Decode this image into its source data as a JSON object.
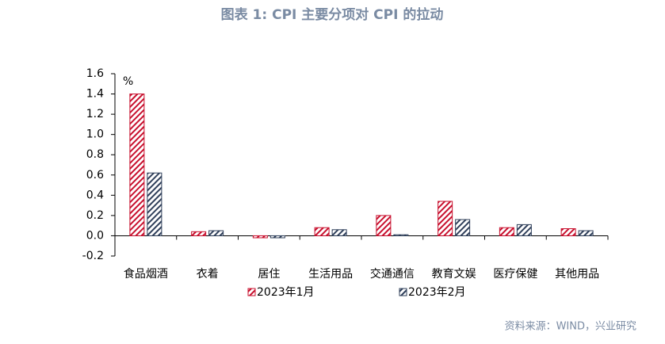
{
  "chart_data": {
    "type": "bar",
    "title": "图表 1:  CPI 主要分项对 CPI 的拉动",
    "unit": "%",
    "source": "资料来源：WIND，兴业研究",
    "categories": [
      "食品烟酒",
      "衣着",
      "居住",
      "生活用品",
      "交通通信",
      "教育文娱",
      "医疗保健",
      "其他用品"
    ],
    "series": [
      {
        "name": "2023年1月",
        "color": "#c8102e",
        "values": [
          1.4,
          0.04,
          -0.02,
          0.08,
          0.2,
          0.34,
          0.08,
          0.07
        ]
      },
      {
        "name": "2023年2月",
        "color": "#2f3f5a",
        "values": [
          0.62,
          0.05,
          -0.02,
          0.06,
          0.01,
          0.16,
          0.11,
          0.05
        ]
      }
    ],
    "ylim": [
      -0.2,
      1.6
    ],
    "yticks": [
      -0.2,
      {
        "value": 0,
        "label": "0.0"
      },
      0.2,
      0.4,
      0.6,
      0.8,
      {
        "value": 1,
        "label": "1.0"
      },
      1.2,
      1.4,
      1.6
    ],
    "hatch": true
  }
}
